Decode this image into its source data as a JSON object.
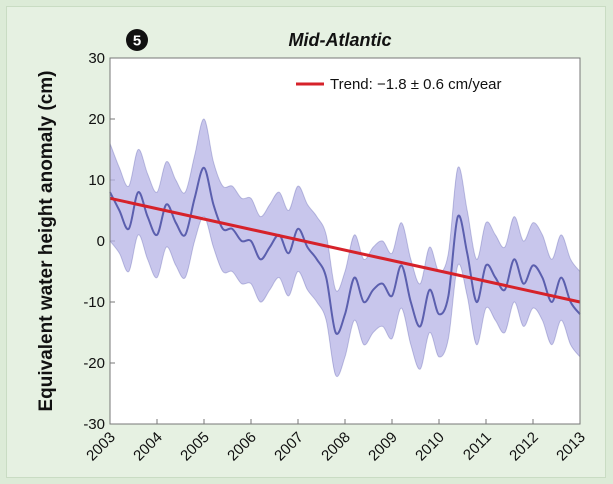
{
  "panel_number": "5",
  "chart_data": {
    "type": "line",
    "title": "Mid-Atlantic",
    "xlabel": "",
    "ylabel": "Equivalent water height anomaly (cm)",
    "xlim": [
      2003,
      2013
    ],
    "ylim": [
      -30,
      30
    ],
    "x_ticks": [
      "2003",
      "2004",
      "2005",
      "2006",
      "2007",
      "2008",
      "2009",
      "2010",
      "2011",
      "2012",
      "2013"
    ],
    "y_ticks": [
      "30",
      "20",
      "10",
      "0",
      "-10",
      "-20",
      "-30"
    ],
    "legend": {
      "placement": "top-right",
      "label": "Trend: −1.8 ± 0.6 cm/year"
    },
    "colors": {
      "series": "#5b5fae",
      "band": "#b6b3e6",
      "trend": "#d6222a",
      "panel_bg": "#ffffff",
      "page_bg": "#dcebd7"
    },
    "series": [
      {
        "x": [
          2003.0,
          2003.2,
          2003.4,
          2003.6,
          2003.8,
          2004.0,
          2004.2,
          2004.4,
          2004.6,
          2004.8,
          2005.0,
          2005.2,
          2005.4,
          2005.6,
          2005.8,
          2006.0,
          2006.2,
          2006.4,
          2006.6,
          2006.8,
          2007.0,
          2007.2,
          2007.4,
          2007.6,
          2007.8,
          2008.0,
          2008.2,
          2008.4,
          2008.6,
          2008.8,
          2009.0,
          2009.2,
          2009.4,
          2009.6,
          2009.8,
          2010.0,
          2010.2,
          2010.4,
          2010.6,
          2010.8,
          2011.0,
          2011.2,
          2011.4,
          2011.6,
          2011.8,
          2012.0,
          2012.2,
          2012.4,
          2012.6,
          2012.8,
          2013.0
        ],
        "values": [
          8,
          5,
          2,
          8,
          4,
          1,
          6,
          3,
          1,
          7,
          12,
          6,
          2,
          2,
          0,
          0,
          -3,
          -1,
          1,
          -2,
          2,
          -1,
          -3,
          -6,
          -15,
          -12,
          -6,
          -10,
          -8,
          -7,
          -9,
          -4,
          -10,
          -14,
          -8,
          -12,
          -9,
          4,
          -2,
          -10,
          -4,
          -6,
          -8,
          -3,
          -7,
          -4,
          -6,
          -10,
          -6,
          -10,
          -12
        ],
        "band_halfwidth": [
          8,
          7,
          7,
          7,
          7,
          7,
          7,
          7,
          7,
          7,
          8,
          7,
          7,
          7,
          7,
          7,
          7,
          7,
          7,
          7,
          7,
          7,
          7,
          7,
          7,
          7,
          7,
          7,
          7,
          7,
          7,
          7,
          7,
          7,
          7,
          7,
          7,
          8,
          7,
          7,
          7,
          7,
          7,
          7,
          7,
          7,
          7,
          7,
          7,
          7,
          7
        ]
      }
    ],
    "trend": {
      "x": [
        2003,
        2013
      ],
      "values": [
        7,
        -10
      ]
    }
  }
}
